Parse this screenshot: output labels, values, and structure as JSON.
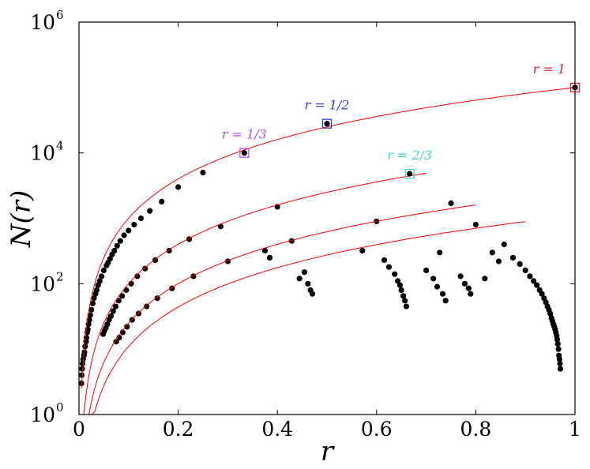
{
  "chart_data": {
    "type": "scatter",
    "title": "",
    "xlabel": "r",
    "ylabel": "N(r)",
    "yscale": "log",
    "xlim": [
      0,
      1
    ],
    "ylim": [
      1,
      1000000
    ],
    "x_ticks": [
      0,
      0.2,
      0.4,
      0.6,
      0.8,
      1
    ],
    "x_tick_labels": [
      "0",
      "0.2",
      "0.4",
      "0.6",
      "0.8",
      "1"
    ],
    "y_ticks": [
      1,
      100,
      10000,
      1000000
    ],
    "y_tick_labels": [
      {
        "base": "10",
        "exp": "0"
      },
      {
        "base": "10",
        "exp": "2"
      },
      {
        "base": "10",
        "exp": "4"
      },
      {
        "base": "10",
        "exp": "6"
      }
    ],
    "grid": false,
    "point_color": "#000000",
    "curve_color": "#ff0000",
    "highlighted_points": [
      {
        "label": "r = 1/3",
        "x": 0.3333,
        "y": 10000,
        "color": "#b64cff"
      },
      {
        "label": "r = 1/2",
        "x": 0.5,
        "y": 28000,
        "color": "#2c3cd8"
      },
      {
        "label": "r = 2/3",
        "x": 0.6667,
        "y": 4800,
        "color": "#39d6c9"
      },
      {
        "label": "r = 1",
        "x": 1.0,
        "y": 100000,
        "color": "#e8203a"
      }
    ],
    "curves": [
      {
        "form": "a*x^2",
        "a": 100000,
        "x_range": [
          0.005,
          1.0
        ]
      },
      {
        "form": "a*x^2",
        "a": 10000,
        "x_range": [
          0.005,
          0.7
        ]
      },
      {
        "form": "a*x^2",
        "a": 2500,
        "x_range": [
          0.01,
          0.8
        ]
      },
      {
        "form": "a*x^2",
        "a": 1100,
        "x_range": [
          0.015,
          0.9
        ]
      }
    ],
    "series": [
      {
        "points": [
          [
            0.25,
            5000
          ],
          [
            0.2,
            3000
          ],
          [
            0.1667,
            1800
          ],
          [
            0.1429,
            1300
          ],
          [
            0.125,
            1000
          ],
          [
            0.1111,
            800
          ],
          [
            0.1,
            650
          ],
          [
            0.0909,
            550
          ],
          [
            0.0833,
            450
          ],
          [
            0.0769,
            380
          ],
          [
            0.0714,
            320
          ],
          [
            0.0667,
            280
          ],
          [
            0.0625,
            240
          ],
          [
            0.0588,
            210
          ],
          [
            0.0556,
            190
          ],
          [
            0.05,
            160
          ],
          [
            0.0455,
            130
          ],
          [
            0.0417,
            110
          ],
          [
            0.0385,
            95
          ],
          [
            0.0357,
            80
          ],
          [
            0.0333,
            70
          ],
          [
            0.0303,
            60
          ],
          [
            0.0278,
            50
          ],
          [
            0.025,
            40
          ],
          [
            0.0227,
            33
          ],
          [
            0.0208,
            28
          ],
          [
            0.0192,
            24
          ],
          [
            0.0179,
            20
          ],
          [
            0.0167,
            18
          ],
          [
            0.015,
            15
          ],
          [
            0.0143,
            13
          ],
          [
            0.0125,
            11
          ],
          [
            0.0111,
            9
          ],
          [
            0.01,
            8
          ],
          [
            0.0083,
            7
          ],
          [
            0.0071,
            6
          ],
          [
            0.0063,
            5
          ],
          [
            0.0056,
            4
          ],
          [
            0.005,
            3
          ],
          [
            0.4,
            1500
          ],
          [
            0.2857,
            750
          ],
          [
            0.2222,
            480
          ],
          [
            0.1818,
            320
          ],
          [
            0.1538,
            230
          ],
          [
            0.1333,
            170
          ],
          [
            0.1176,
            130
          ],
          [
            0.1053,
            100
          ],
          [
            0.0952,
            80
          ],
          [
            0.087,
            65
          ],
          [
            0.08,
            55
          ],
          [
            0.0741,
            45
          ],
          [
            0.069,
            38
          ],
          [
            0.0645,
            32
          ],
          [
            0.0606,
            28
          ],
          [
            0.0571,
            24
          ],
          [
            0.054,
            21
          ],
          [
            0.0513,
            19
          ],
          [
            0.0488,
            17
          ],
          [
            0.4286,
            450
          ],
          [
            0.3,
            220
          ],
          [
            0.2308,
            130
          ],
          [
            0.1875,
            85
          ],
          [
            0.1579,
            60
          ],
          [
            0.1364,
            45
          ],
          [
            0.12,
            35
          ],
          [
            0.1071,
            28
          ],
          [
            0.0968,
            22
          ],
          [
            0.0882,
            18
          ],
          [
            0.0811,
            15
          ],
          [
            0.075,
            13
          ],
          [
            0.6,
            900
          ],
          [
            0.75,
            1700
          ],
          [
            0.8,
            800
          ],
          [
            0.8571,
            400
          ],
          [
            0.5714,
            320
          ],
          [
            0.7273,
            300
          ],
          [
            0.375,
            320
          ],
          [
            0.3846,
            250
          ],
          [
            0.4444,
            120
          ],
          [
            0.4545,
            150
          ],
          [
            0.4615,
            100
          ],
          [
            0.4667,
            80
          ],
          [
            0.4706,
            70
          ],
          [
            0.6154,
            230
          ],
          [
            0.625,
            180
          ],
          [
            0.6364,
            140
          ],
          [
            0.6429,
            110
          ],
          [
            0.6471,
            95
          ],
          [
            0.65,
            80
          ],
          [
            0.6538,
            65
          ],
          [
            0.6571,
            55
          ],
          [
            0.66,
            45
          ],
          [
            0.7,
            160
          ],
          [
            0.7143,
            120
          ],
          [
            0.7222,
            90
          ],
          [
            0.7333,
            70
          ],
          [
            0.7391,
            55
          ],
          [
            0.7692,
            130
          ],
          [
            0.7778,
            100
          ],
          [
            0.7857,
            85
          ],
          [
            0.7895,
            70
          ],
          [
            0.8182,
            120
          ],
          [
            0.8333,
            300
          ],
          [
            0.8462,
            220
          ],
          [
            0.875,
            250
          ],
          [
            0.8889,
            200
          ],
          [
            0.9,
            160
          ],
          [
            0.9091,
            130
          ],
          [
            0.9167,
            110
          ],
          [
            0.9231,
            95
          ],
          [
            0.9286,
            80
          ],
          [
            0.9333,
            70
          ],
          [
            0.9375,
            60
          ],
          [
            0.9412,
            52
          ],
          [
            0.9444,
            45
          ],
          [
            0.9474,
            40
          ],
          [
            0.95,
            35
          ],
          [
            0.9524,
            30
          ],
          [
            0.9545,
            27
          ],
          [
            0.9565,
            24
          ],
          [
            0.9583,
            22
          ],
          [
            0.96,
            20
          ],
          [
            0.9615,
            18
          ],
          [
            0.963,
            16
          ],
          [
            0.9643,
            14
          ],
          [
            0.9655,
            12
          ],
          [
            0.9667,
            10
          ],
          [
            0.9677,
            8
          ],
          [
            0.9688,
            7
          ],
          [
            0.9697,
            6
          ],
          [
            0.9706,
            5
          ]
        ]
      }
    ]
  }
}
